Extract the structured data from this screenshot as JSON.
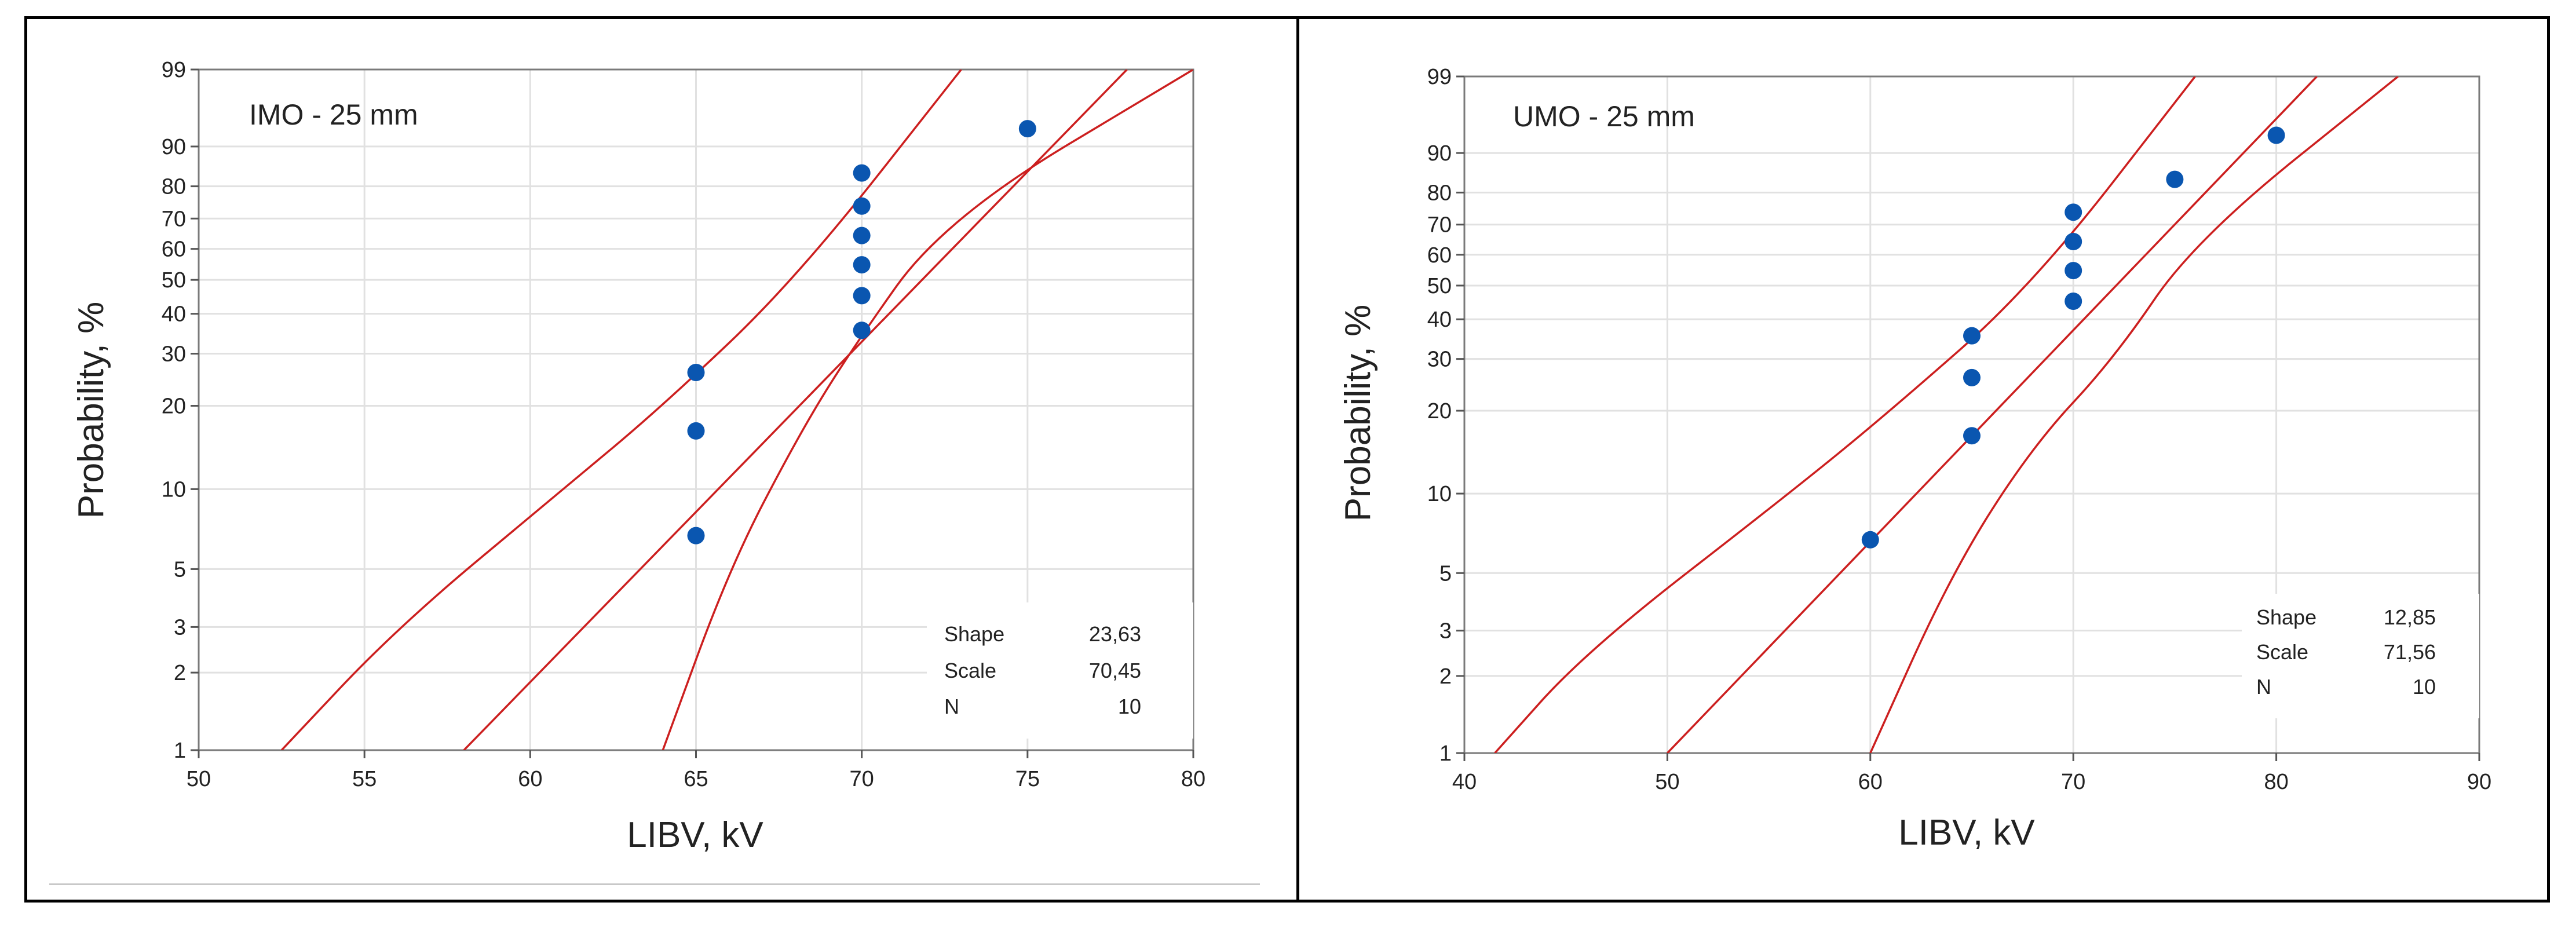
{
  "chart_data": [
    {
      "type": "scatter",
      "subtype": "weibull-probability-plot",
      "title": "IMO - 25 mm",
      "xlabel": "LIBV, kV",
      "ylabel": "Probability, %",
      "xlim": [
        50,
        80
      ],
      "x_ticks": [
        50,
        55,
        60,
        65,
        70,
        75,
        80
      ],
      "y_scale": "weibull",
      "ylim": [
        1,
        99
      ],
      "y_ticks": [
        1,
        2,
        3,
        5,
        10,
        20,
        30,
        40,
        50,
        60,
        70,
        80,
        90,
        99
      ],
      "grid": true,
      "points": [
        {
          "x": 65,
          "y": 6.7
        },
        {
          "x": 65,
          "y": 16.3
        },
        {
          "x": 65,
          "y": 26.0
        },
        {
          "x": 70,
          "y": 35.6
        },
        {
          "x": 70,
          "y": 45.2
        },
        {
          "x": 70,
          "y": 54.8
        },
        {
          "x": 70,
          "y": 64.4
        },
        {
          "x": 70,
          "y": 74.0
        },
        {
          "x": 70,
          "y": 83.7
        },
        {
          "x": 75,
          "y": 93.3
        }
      ],
      "fit": {
        "shape": 23.63,
        "scale": 70.45
      },
      "lines": [
        {
          "name": "fit",
          "x": [
            58.0,
            78.0
          ],
          "y": [
            1,
            99
          ]
        },
        {
          "name": "lower",
          "x": [
            52.5,
            56.0,
            61.0,
            64.0,
            68.0,
            73.0
          ],
          "y": [
            1,
            3,
            10,
            20,
            50,
            99
          ]
        },
        {
          "name": "upper",
          "x": [
            64.0,
            66.0,
            68.0,
            69.6,
            72.5,
            80.0
          ],
          "y": [
            1,
            5,
            15,
            30,
            70,
            99
          ]
        }
      ],
      "legend_position": "bottom-right",
      "stats": [
        {
          "label": "Shape",
          "value": "23,63"
        },
        {
          "label": "Scale",
          "value": "70,45"
        },
        {
          "label": "N",
          "value": "10"
        }
      ],
      "colors": {
        "points": "#0a56b0",
        "lines": "#cc1f1f",
        "grid": "#e1e1e1"
      }
    },
    {
      "type": "scatter",
      "subtype": "weibull-probability-plot",
      "title": "UMO - 25 mm",
      "xlabel": "LIBV, kV",
      "ylabel": "Probability, %",
      "xlim": [
        40,
        90
      ],
      "x_ticks": [
        40,
        50,
        60,
        70,
        80,
        90
      ],
      "y_scale": "weibull",
      "ylim": [
        1,
        99
      ],
      "y_ticks": [
        1,
        2,
        3,
        5,
        10,
        20,
        30,
        40,
        50,
        60,
        70,
        80,
        90,
        99
      ],
      "grid": true,
      "points": [
        {
          "x": 60,
          "y": 6.7
        },
        {
          "x": 65,
          "y": 16.3
        },
        {
          "x": 65,
          "y": 26.0
        },
        {
          "x": 65,
          "y": 35.6
        },
        {
          "x": 70,
          "y": 45.2
        },
        {
          "x": 70,
          "y": 54.8
        },
        {
          "x": 70,
          "y": 64.4
        },
        {
          "x": 70,
          "y": 74.0
        },
        {
          "x": 75,
          "y": 83.7
        },
        {
          "x": 80,
          "y": 93.3
        }
      ],
      "fit": {
        "shape": 12.85,
        "scale": 71.56
      },
      "lines": [
        {
          "name": "fit",
          "x": [
            50.0,
            82.0
          ],
          "y": [
            1,
            99
          ]
        },
        {
          "name": "lower",
          "x": [
            41.5,
            46.0,
            56.0,
            61.0,
            68.0,
            76.0
          ],
          "y": [
            1,
            2.5,
            10,
            20,
            50,
            99
          ]
        },
        {
          "name": "upper",
          "x": [
            60.0,
            64.0,
            68.0,
            72.0,
            76.0,
            86.0
          ],
          "y": [
            1,
            5,
            15,
            30,
            65,
            99
          ]
        }
      ],
      "legend_position": "bottom-right",
      "stats": [
        {
          "label": "Shape",
          "value": "12,85"
        },
        {
          "label": "Scale",
          "value": "71,56"
        },
        {
          "label": "N",
          "value": "10"
        }
      ],
      "colors": {
        "points": "#0a56b0",
        "lines": "#cc1f1f",
        "grid": "#e1e1e1"
      }
    }
  ]
}
